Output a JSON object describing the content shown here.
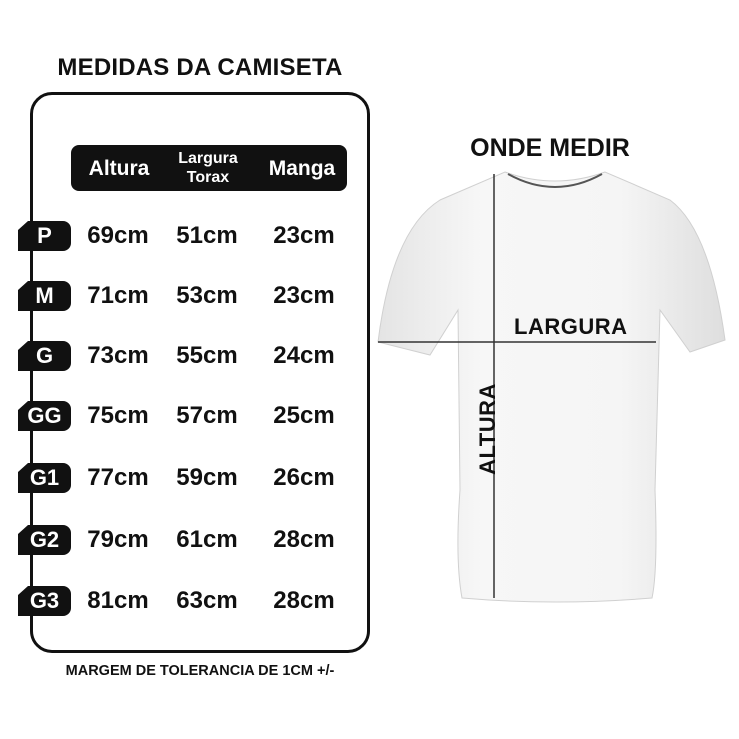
{
  "chart": {
    "title": "MEDIDAS DA CAMISETA",
    "columns": [
      "Altura",
      "Largura Torax",
      "Manga"
    ],
    "rows": [
      {
        "size": "P",
        "altura": "69cm",
        "largura": "51cm",
        "manga": "23cm"
      },
      {
        "size": "M",
        "altura": "71cm",
        "largura": "53cm",
        "manga": "23cm"
      },
      {
        "size": "G",
        "altura": "73cm",
        "largura": "55cm",
        "manga": "24cm"
      },
      {
        "size": "GG",
        "altura": "75cm",
        "largura": "57cm",
        "manga": "25cm"
      },
      {
        "size": "G1",
        "altura": "77cm",
        "largura": "59cm",
        "manga": "26cm"
      },
      {
        "size": "G2",
        "altura": "79cm",
        "largura": "61cm",
        "manga": "28cm"
      },
      {
        "size": "G3",
        "altura": "81cm",
        "largura": "63cm",
        "manga": "28cm"
      }
    ],
    "footer": "MARGEM DE TOLERANCIA DE 1CM +/-"
  },
  "diagram": {
    "title": "ONDE MEDIR",
    "width_label": "LARGURA",
    "height_label": "ALTURA"
  }
}
